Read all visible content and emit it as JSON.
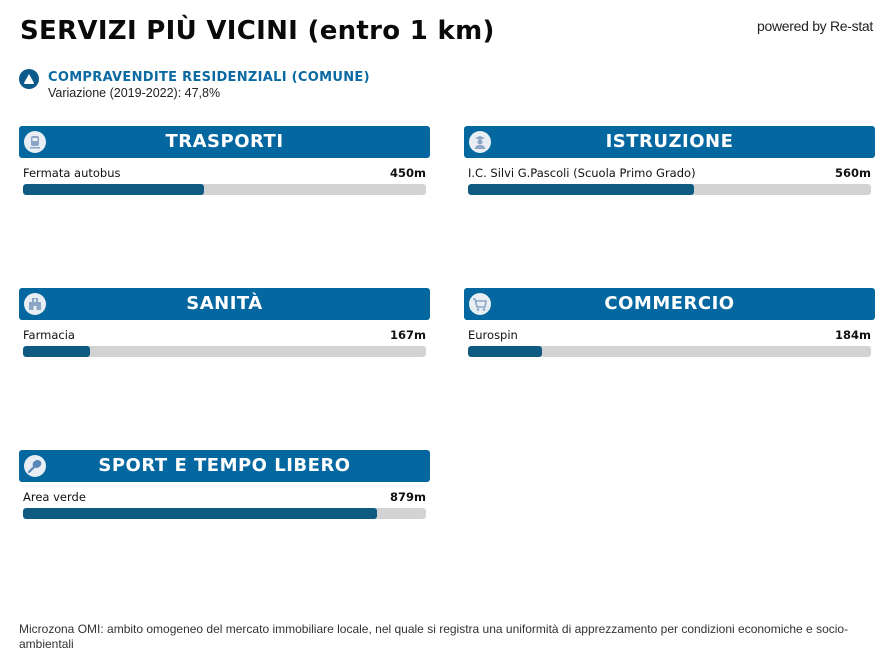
{
  "header": {
    "title": "SERVIZI PIÙ VICINI (entro 1 km)",
    "powered_by": "powered by Re-stat"
  },
  "kpi": {
    "icon": "triangle-up-icon",
    "title": "COMPRAVENDITE RESIDENZIALI (COMUNE)",
    "subtitle": "Variazione (2019-2022): 47,8%"
  },
  "colors": {
    "header_bg": "#0467a0",
    "bar_fill": "#0e5a80",
    "bar_track": "#d3d3d3",
    "kpi_title": "#0b6aa2"
  },
  "scale_max_m": 1000,
  "categories": [
    {
      "title": "TRASPORTI",
      "icon": "train-icon",
      "items": [
        {
          "label": "Fermata autobus",
          "value": "450m",
          "distance": 450
        }
      ]
    },
    {
      "title": "ISTRUZIONE",
      "icon": "student-icon",
      "items": [
        {
          "label": "I.C. Silvi G.Pascoli (Scuola Primo Grado)",
          "value": "560m",
          "distance": 560
        }
      ]
    },
    {
      "title": "SANITÀ",
      "icon": "hospital-icon",
      "items": [
        {
          "label": "Farmacia",
          "value": "167m",
          "distance": 167
        }
      ]
    },
    {
      "title": "COMMERCIO",
      "icon": "shopping-cart-icon",
      "items": [
        {
          "label": "Eurospin",
          "value": "184m",
          "distance": 184
        }
      ]
    },
    {
      "title": "SPORT E TEMPO LIBERO",
      "icon": "racket-icon",
      "items": [
        {
          "label": "Area verde",
          "value": "879m",
          "distance": 879
        }
      ]
    }
  ],
  "footnote": "Microzona OMI: ambito omogeneo del mercato immobiliare locale, nel quale si registra una uniformità di apprezzamento per condizioni economiche e socio-ambientali"
}
